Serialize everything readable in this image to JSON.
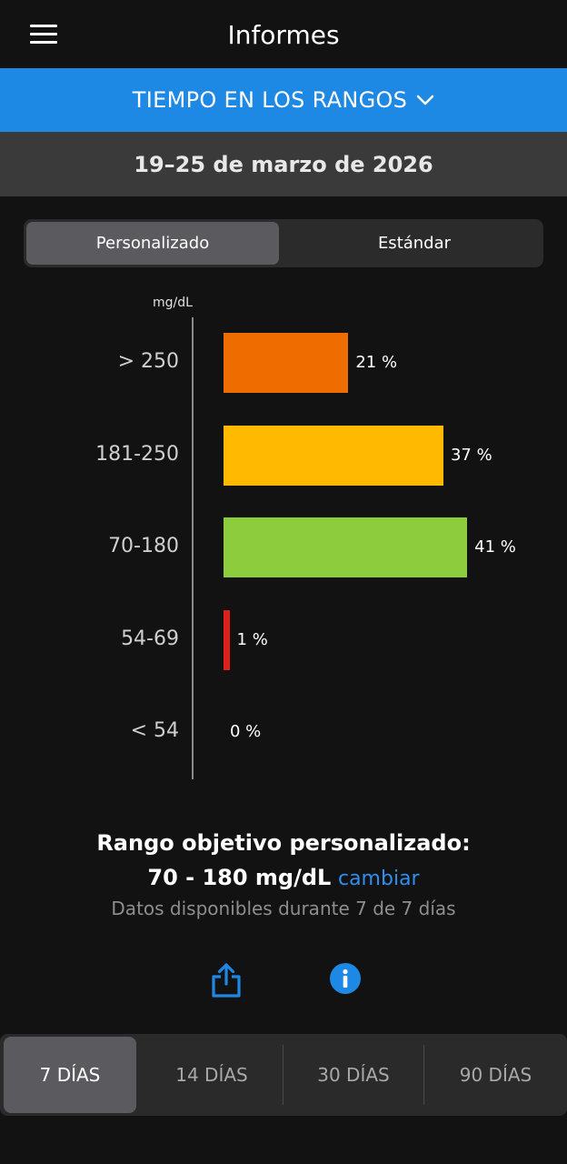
{
  "header": {
    "title": "Informes",
    "menu_icon": "hamburger-menu-icon"
  },
  "report_selector": {
    "label": "TIEMPO EN LOS RANGOS",
    "icon": "chevron-down-icon"
  },
  "date_range": "19–25 de marzo de 2026",
  "view_toggle": {
    "options": [
      "Personalizado",
      "Estándar"
    ],
    "selected": "Personalizado"
  },
  "chart_data": {
    "type": "bar",
    "orientation": "horizontal",
    "unit_label": "mg/dL",
    "categories": [
      "> 250",
      "181-250",
      "70-180",
      "54-69",
      "< 54"
    ],
    "values": [
      21,
      37,
      41,
      1,
      0
    ],
    "value_labels": [
      "21 %",
      "37 %",
      "41 %",
      "1 %",
      "0 %"
    ],
    "colors": [
      "#ee6c00",
      "#ffba00",
      "#8dcc3c",
      "#e0201b",
      "#e0201b"
    ],
    "xlim": [
      0,
      100
    ]
  },
  "target": {
    "title": "Rango objetivo personalizado:",
    "range": "70 - 180 mg/dL",
    "change_link": "cambiar",
    "availability": "Datos disponibles durante 7 de 7 días"
  },
  "actions": {
    "share_icon": "share-icon",
    "info_icon": "info-icon",
    "accent": "#1e88e5"
  },
  "period_tabs": {
    "options": [
      "7 DÍAS",
      "14 DÍAS",
      "30 DÍAS",
      "90 DÍAS"
    ],
    "selected": "7 DÍAS"
  }
}
